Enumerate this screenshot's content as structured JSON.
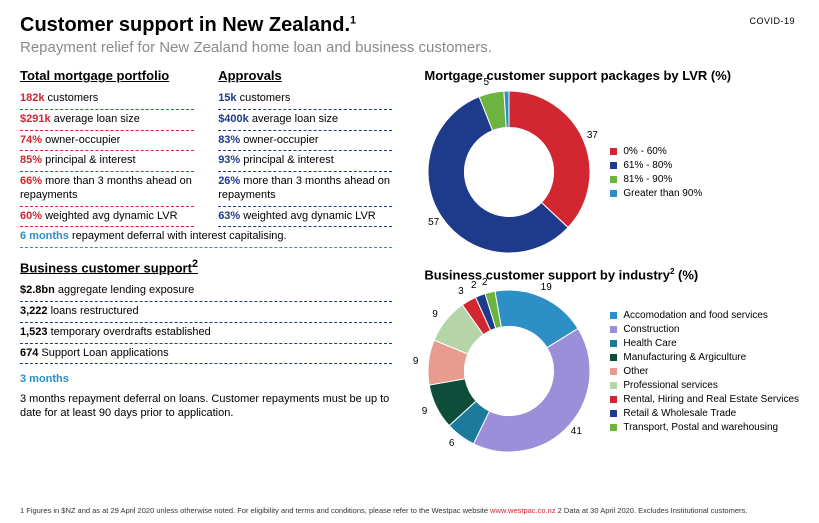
{
  "header": {
    "title": "Customer support in New Zealand.",
    "title_sup": "1",
    "subtitle": "Repayment relief for New Zealand home loan and business customers.",
    "covid_tag": "COVID-19"
  },
  "left": {
    "portfolio": {
      "heading": "Total mortgage portfolio",
      "rows": [
        {
          "value": "182k",
          "label": " customers",
          "vclass": "vred"
        },
        {
          "value": "$291k",
          "label": " average loan size",
          "vclass": "vred"
        },
        {
          "value": "74%",
          "label": " owner-occupier",
          "vclass": "vred"
        },
        {
          "value": "85%",
          "label": " principal & interest",
          "vclass": "vred"
        },
        {
          "value": "66%",
          "label": " more than 3 months ahead on repayments",
          "vclass": "vred"
        },
        {
          "value": "60%",
          "label": " weighted avg dynamic LVR",
          "vclass": "vred"
        }
      ]
    },
    "approvals": {
      "heading": "Approvals",
      "rows": [
        {
          "value": "15k",
          "label": " customers",
          "vclass": "vnavy"
        },
        {
          "value": "$400k",
          "label": " average loan size",
          "vclass": "vnavy"
        },
        {
          "value": "83%",
          "label": " owner-occupier",
          "vclass": "vnavy"
        },
        {
          "value": "93%",
          "label": " principal & interest",
          "vclass": "vnavy"
        },
        {
          "value": "26%",
          "label": " more than 3 months ahead on repayments",
          "vclass": "vnavy"
        },
        {
          "value": "63%",
          "label": " weighted avg dynamic LVR",
          "vclass": "vnavy"
        }
      ]
    },
    "portfolio_note": {
      "value": "6 months",
      "label": " repayment deferral with interest capitalising."
    },
    "business": {
      "heading": "Business customer support",
      "heading_sup": "2",
      "rows": [
        {
          "value": "$2.8bn",
          "label": " aggregate lending exposure",
          "vclass": "vblack"
        },
        {
          "value": "3,222",
          "label": " loans restructured",
          "vclass": "vblack"
        },
        {
          "value": "1,523",
          "label": " temporary overdrafts established",
          "vclass": "vblack"
        },
        {
          "value": "674",
          "label": " Support Loan applications",
          "vclass": "vblack"
        }
      ],
      "note_value": "3 months",
      "note_text": "3 months repayment deferral on loans. Customer repayments must be up to date for at least 90 days prior to application."
    }
  },
  "charts": {
    "lvr": {
      "title": "Mortgage customer support packages by LVR (%)",
      "type": "donut",
      "size": 170,
      "inner_ratio": 0.55,
      "start_angle": 0,
      "background_color": "#ffffff",
      "label_fontsize": 10,
      "segments": [
        {
          "label": "0% - 60%",
          "value": 37,
          "color": "#d22630",
          "show_value": true
        },
        {
          "label": "61% - 80%",
          "value": 57,
          "color": "#1e3a8a",
          "show_value": true
        },
        {
          "label": "81% - 90%",
          "value": 5,
          "color": "#6cb33f",
          "show_value": true
        },
        {
          "label": "Greater than 90%",
          "value": 1,
          "color": "#2c8fc5",
          "show_value": false
        }
      ]
    },
    "industry": {
      "title": "Business customer support by industry",
      "title_sup": "2",
      "title_suffix": " (%)",
      "type": "donut",
      "size": 170,
      "inner_ratio": 0.55,
      "start_angle": -10,
      "background_color": "#ffffff",
      "label_fontsize": 10,
      "segments": [
        {
          "label": "Accomodation and food services",
          "value": 19,
          "color": "#2c8fc5",
          "show_value": true
        },
        {
          "label": "Construction",
          "value": 41,
          "color": "#9b8fd9",
          "show_value": true
        },
        {
          "label": "Health Care",
          "value": 6,
          "color": "#1e7a9b",
          "show_value": true
        },
        {
          "label": "Manufacturing & Argiculture",
          "value": 9,
          "color": "#0d4d3a",
          "show_value": true
        },
        {
          "label": "Other",
          "value": 9,
          "color": "#e89c8f",
          "show_value": true
        },
        {
          "label": "Professional services",
          "value": 9,
          "color": "#b5d4a8",
          "show_value": true
        },
        {
          "label": "Rental, Hiring and Real Estate Services",
          "value": 3,
          "color": "#d22630",
          "show_value": true
        },
        {
          "label": "Retail & Wholesale Trade",
          "value": 2,
          "color": "#1e3a8a",
          "show_value": true
        },
        {
          "label": "Transport, Postal and warehousing",
          "value": 2,
          "color": "#6cb33f",
          "show_value": true
        }
      ]
    }
  },
  "footnote": {
    "text1": "1 Figures in $NZ and as at 29 April 2020 unless otherwise noted. For eligibility and terms and conditions, please refer to the Westpac website ",
    "link": "www.westpac.co.nz",
    "text2": "  2 Data at 30 April 2020.  Excludes Institutional customers."
  }
}
